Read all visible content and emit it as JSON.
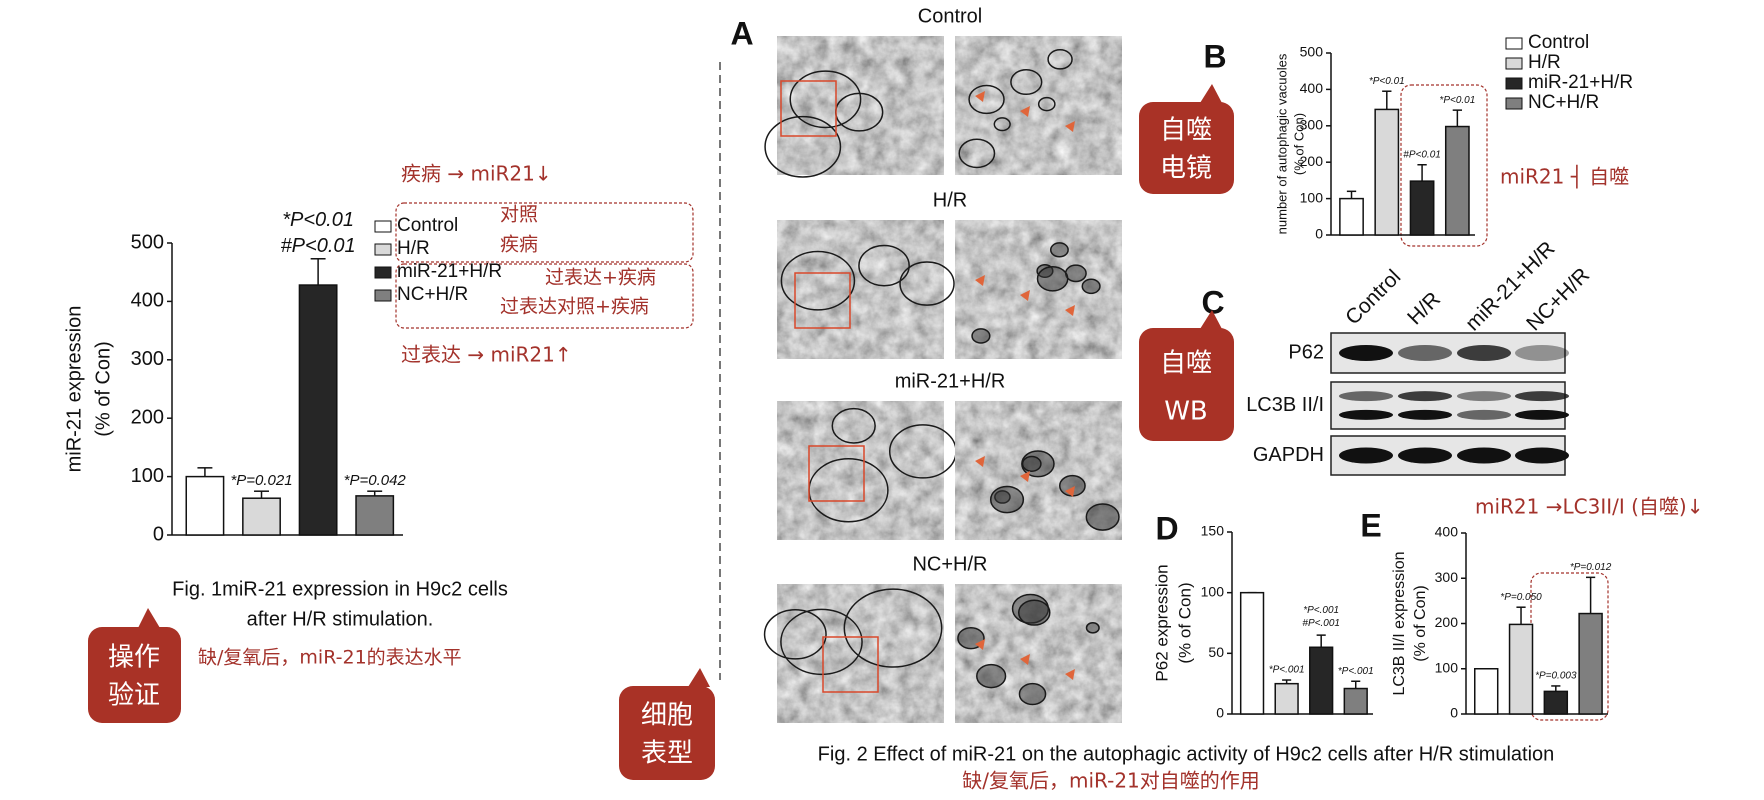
{
  "figure1": {
    "caption": [
      "Fig. 1miR-21 expression in H9c2 cells",
      "after H/R stimulation."
    ]
  },
  "figure2": {
    "panel": "A",
    "conditions": [
      "Control",
      "H/R",
      "miR-21+H/R",
      "NC+H/R"
    ],
    "caption": "Fig. 2 Effect of miR-21 on the autophagic activity of H9c2 cells after H/R stimulation",
    "caption_cn": "缺/复氧后，miR-21对自噬的作用"
  },
  "blot": {
    "panel": "C",
    "lanes": [
      "Control",
      "H/R",
      "miR-21+H/R",
      "NC+H/R"
    ],
    "rows": [
      "P62",
      "LC3B II/I",
      "GAPDH"
    ]
  },
  "annotations": {
    "callout_validation": [
      "操作",
      "验证"
    ],
    "callout_phenotype": [
      "细胞",
      "表型"
    ],
    "callout_em": [
      "自噬",
      "电镜"
    ],
    "callout_wb": [
      "自噬",
      "WB"
    ],
    "fig1_note": "缺/复氧后，miR-21的表达水平",
    "disease_effect": "疾病 → miR21↓",
    "overexpression_effect": "过表达 → miR21↑",
    "legend_notes": [
      "对照",
      "疾病",
      "过表达+疾病",
      "过表达对照+疾病"
    ],
    "autophagy_effect": "miR21 ┤ 自噬",
    "lc3_effect": "miR21 →LC3II/I (自噬)↓"
  },
  "chart_data": [
    {
      "type": "bar",
      "ylabel": [
        "miR-21 expression",
        "(% of Con)"
      ],
      "categories": [
        "Control",
        "H/R",
        "miR-21+H/R",
        "NC+H/R"
      ],
      "colors": [
        "#ffffff",
        "#d9d9d9",
        "#262626",
        "#7f7f7f"
      ],
      "values": [
        100,
        63,
        428,
        67
      ],
      "errors": [
        15,
        12,
        45,
        8
      ],
      "significance": [
        null,
        "*P=0.021",
        [
          "*P<0.01",
          "#P<0.01"
        ],
        "*P=0.042"
      ],
      "ylim": [
        0,
        500
      ],
      "yticks": [
        0,
        100,
        200,
        300,
        400,
        500
      ],
      "legend": true,
      "grid": false
    },
    {
      "type": "bar",
      "panel": "B",
      "ylabel": [
        "number of autophagic vacuoles",
        "(% of Con)"
      ],
      "categories": [
        "Control",
        "H/R",
        "miR-21+H/R",
        "NC+H/R"
      ],
      "colors": [
        "#ffffff",
        "#d9d9d9",
        "#262626",
        "#7f7f7f"
      ],
      "values": [
        100,
        345,
        148,
        298
      ],
      "errors": [
        20,
        50,
        45,
        45
      ],
      "significance": [
        null,
        "*P<0.01",
        "#P<0.01",
        "*P<0.01"
      ],
      "ylim": [
        0,
        500
      ],
      "yticks": [
        0,
        100,
        200,
        300,
        400,
        500
      ],
      "legend": true,
      "grid": false
    },
    {
      "type": "bar",
      "panel": "D",
      "ylabel": [
        "P62 expression",
        "(% of Con)"
      ],
      "categories": [
        "Control",
        "H/R",
        "miR-21+H/R",
        "NC+H/R"
      ],
      "colors": [
        "#ffffff",
        "#d9d9d9",
        "#262626",
        "#7f7f7f"
      ],
      "values": [
        100,
        25,
        55,
        21
      ],
      "errors": [
        0,
        3,
        10,
        6
      ],
      "significance": [
        null,
        "*P<.001",
        [
          "*P<.001",
          "#P<.001"
        ],
        "*P<.001"
      ],
      "ylim": [
        0,
        150
      ],
      "yticks": [
        0,
        50,
        100,
        150
      ],
      "legend": false,
      "grid": false
    },
    {
      "type": "bar",
      "panel": "E",
      "ylabel": [
        "LC3B II/I expression",
        "(% of Con)"
      ],
      "categories": [
        "Control",
        "H/R",
        "miR-21+H/R",
        "NC+H/R"
      ],
      "colors": [
        "#ffffff",
        "#d9d9d9",
        "#262626",
        "#7f7f7f"
      ],
      "values": [
        100,
        198,
        50,
        222
      ],
      "errors": [
        0,
        38,
        12,
        80
      ],
      "significance": [
        null,
        "*P=0.050",
        "*P=0.003",
        "*P=0.012"
      ],
      "ylim": [
        0,
        400
      ],
      "yticks": [
        0,
        100,
        200,
        300,
        400
      ],
      "legend": false,
      "grid": false
    }
  ]
}
